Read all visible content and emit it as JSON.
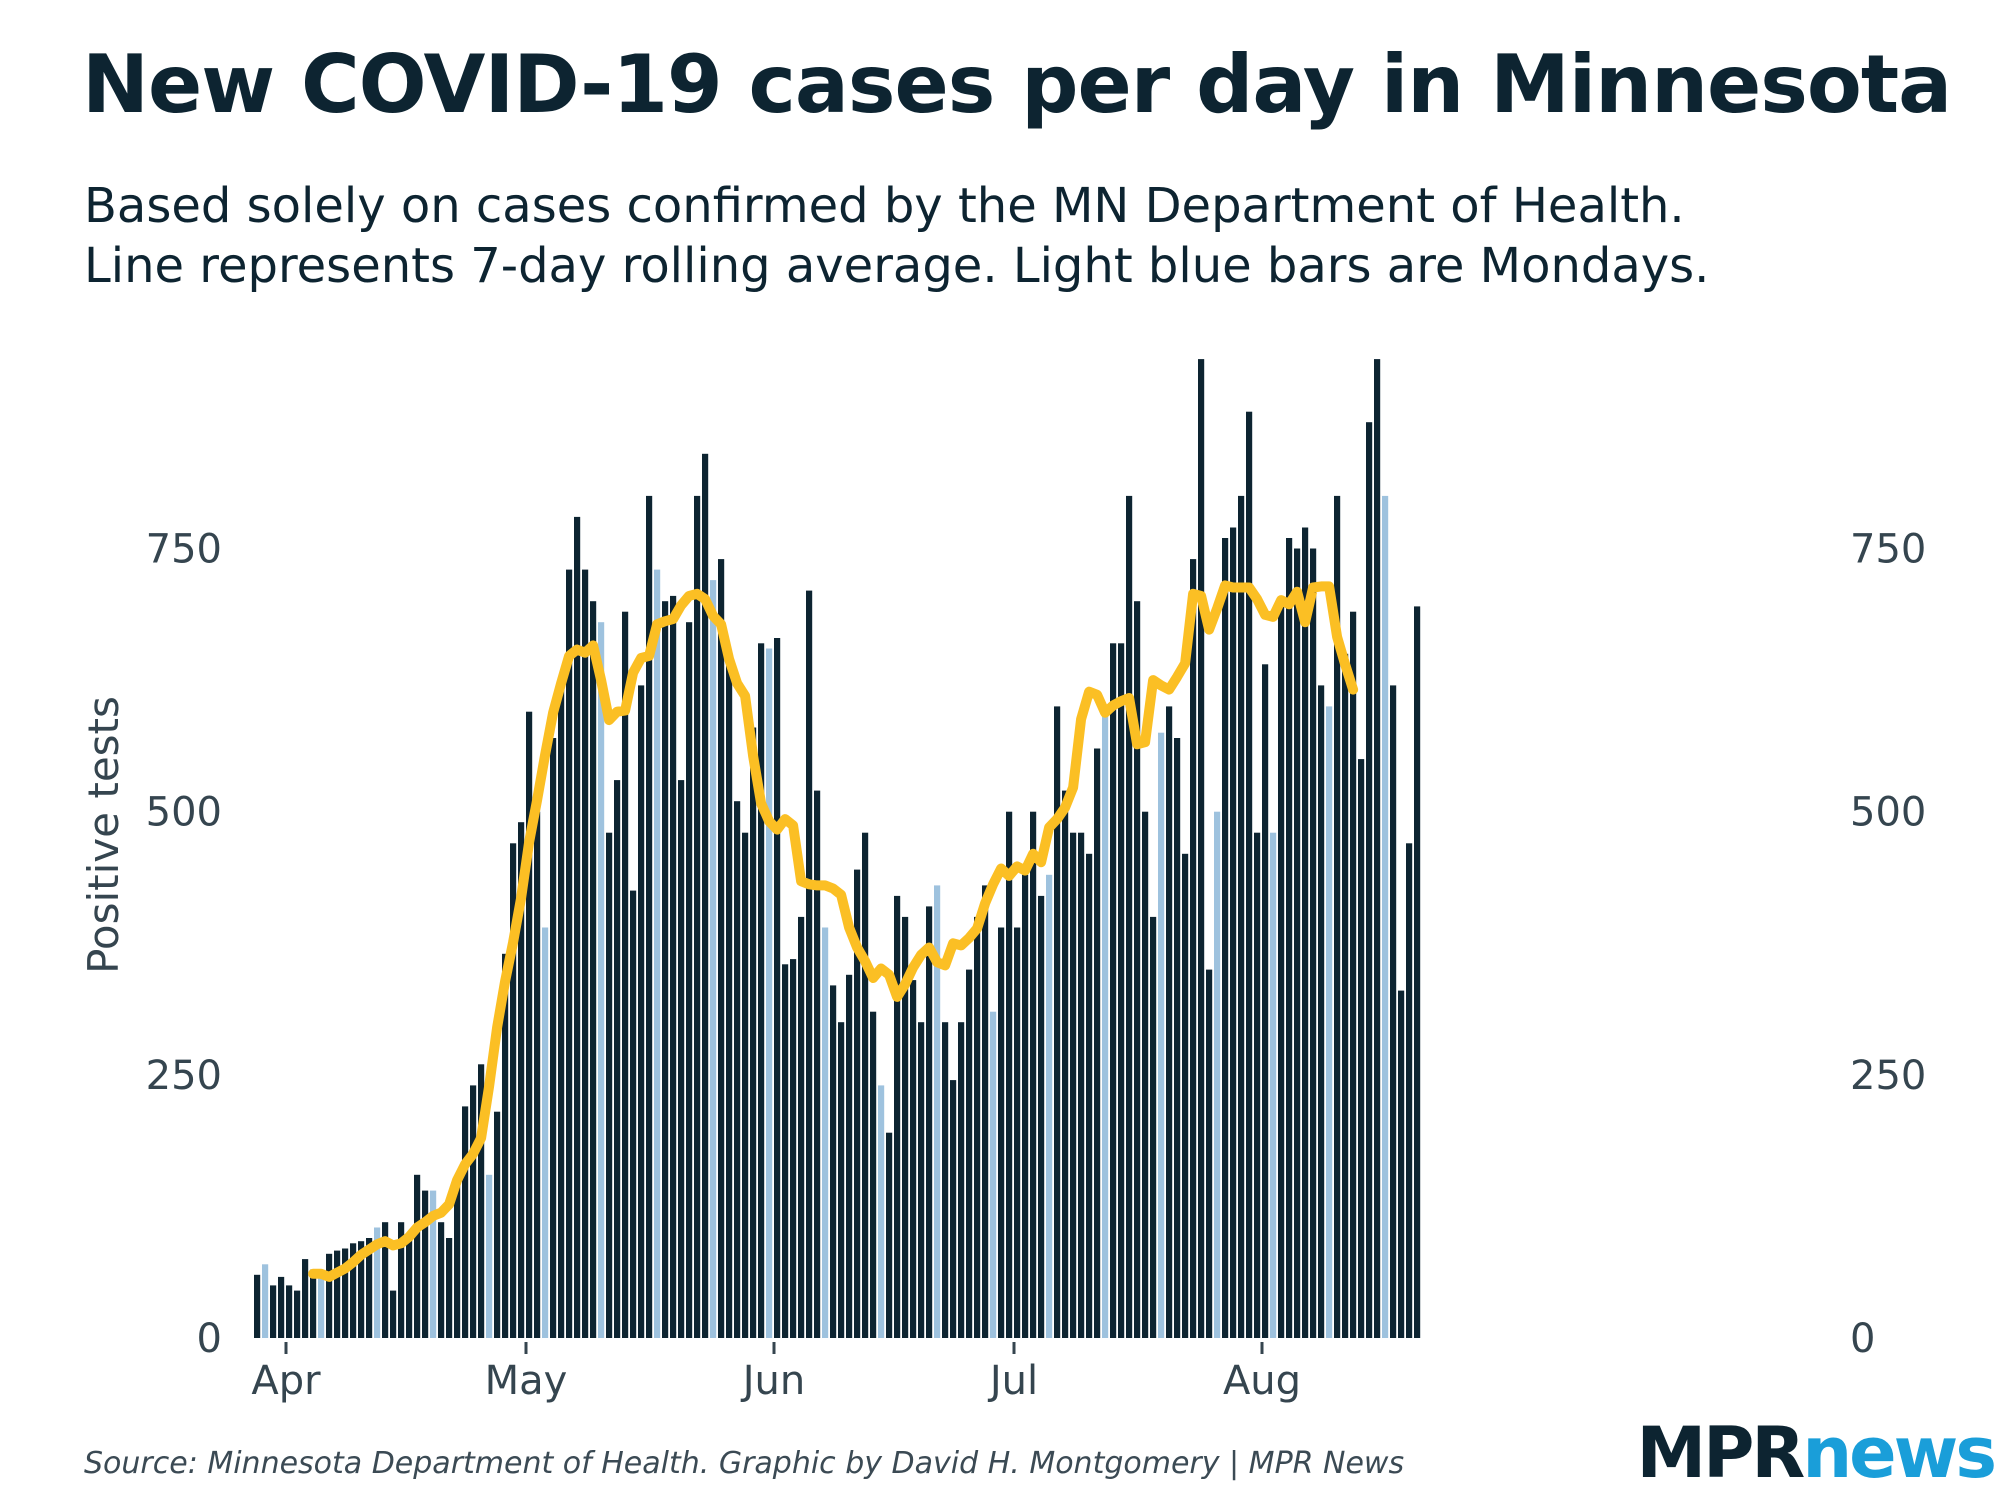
{
  "header": {
    "title": "New COVID-19 cases per day in Minnesota",
    "subtitle_line1": "Based solely on cases confirmed by the MN Department of Health.",
    "subtitle_line2": "Line represents 7-day rolling average. Light blue bars are Mondays."
  },
  "footer": {
    "source": "Source: Minnesota Department of Health. Graphic by David H. Montgomery | MPR News",
    "logo_part1": "MPR",
    "logo_part2": "news"
  },
  "colors": {
    "bar": "#0d2431",
    "monday": "#9ec2de",
    "line": "#fbbf24",
    "text": "#0d2431",
    "accent": "#1a9ed9"
  },
  "chart_data": {
    "type": "bar",
    "ylabel": "Positive tests",
    "ylim": [
      0,
      950
    ],
    "yticks": [
      0,
      250,
      500,
      750
    ],
    "x_ticks": [
      {
        "label": "Apr",
        "day": 4
      },
      {
        "label": "May",
        "day": 34
      },
      {
        "label": "Jun",
        "day": 65
      },
      {
        "label": "Jul",
        "day": 95
      },
      {
        "label": "Aug",
        "day": 126
      }
    ],
    "monday_index_offset": 1,
    "bar_values": [
      60,
      70,
      50,
      58,
      50,
      45,
      75,
      65,
      60,
      80,
      83,
      85,
      90,
      92,
      95,
      105,
      110,
      45,
      110,
      95,
      155,
      140,
      140,
      110,
      95,
      150,
      220,
      240,
      260,
      155,
      215,
      365,
      470,
      490,
      595,
      500,
      390,
      570,
      620,
      730,
      780,
      730,
      700,
      680,
      480,
      530,
      690,
      425,
      620,
      800,
      730,
      700,
      705,
      530,
      680,
      800,
      840,
      720,
      740,
      640,
      510,
      480,
      580,
      660,
      655,
      665,
      355,
      360,
      400,
      710,
      520,
      390,
      335,
      300,
      345,
      445,
      480,
      310,
      240,
      195,
      420,
      400,
      340,
      300,
      410,
      430,
      300,
      245,
      300,
      350,
      400,
      430,
      310,
      390,
      500,
      390,
      440,
      500,
      420,
      440,
      600,
      520,
      480,
      480,
      460,
      560,
      600,
      660,
      660,
      800,
      700,
      500,
      400,
      575,
      600,
      570,
      460,
      740,
      930,
      350,
      500,
      760,
      770,
      800,
      880,
      480,
      640,
      480,
      700,
      760,
      750,
      770,
      750,
      620,
      600,
      800,
      650,
      690,
      550,
      870,
      930,
      800,
      620,
      330,
      470,
      695
    ],
    "avg_start_index": 7,
    "rolling_avg": [
      61,
      61,
      58,
      62,
      66,
      72,
      79,
      84,
      89,
      92,
      88,
      90,
      96,
      105,
      110,
      116,
      119,
      127,
      150,
      165,
      175,
      190,
      239,
      295,
      339,
      376,
      418,
      471,
      511,
      554,
      594,
      622,
      648,
      654,
      651,
      658,
      625,
      587,
      595,
      596,
      632,
      646,
      648,
      678,
      681,
      683,
      696,
      705,
      707,
      702,
      686,
      678,
      645,
      622,
      610,
      553,
      508,
      491,
      483,
      493,
      487,
      434,
      431,
      430,
      430,
      427,
      421,
      390,
      371,
      358,
      342,
      351,
      345,
      324,
      336,
      352,
      364,
      371,
      357,
      354,
      375,
      373,
      380,
      389,
      413,
      431,
      446,
      439,
      448,
      444,
      460,
      452,
      485,
      493,
      504,
      523,
      588,
      614,
      611,
      594,
      601,
      605,
      608,
      564,
      566,
      625,
      620,
      616,
      628,
      641,
      707,
      705,
      673,
      693,
      715,
      713,
      713,
      713,
      702,
      687,
      685,
      701,
      697,
      709,
      680,
      713,
      714,
      714,
      666,
      640,
      616
    ]
  }
}
